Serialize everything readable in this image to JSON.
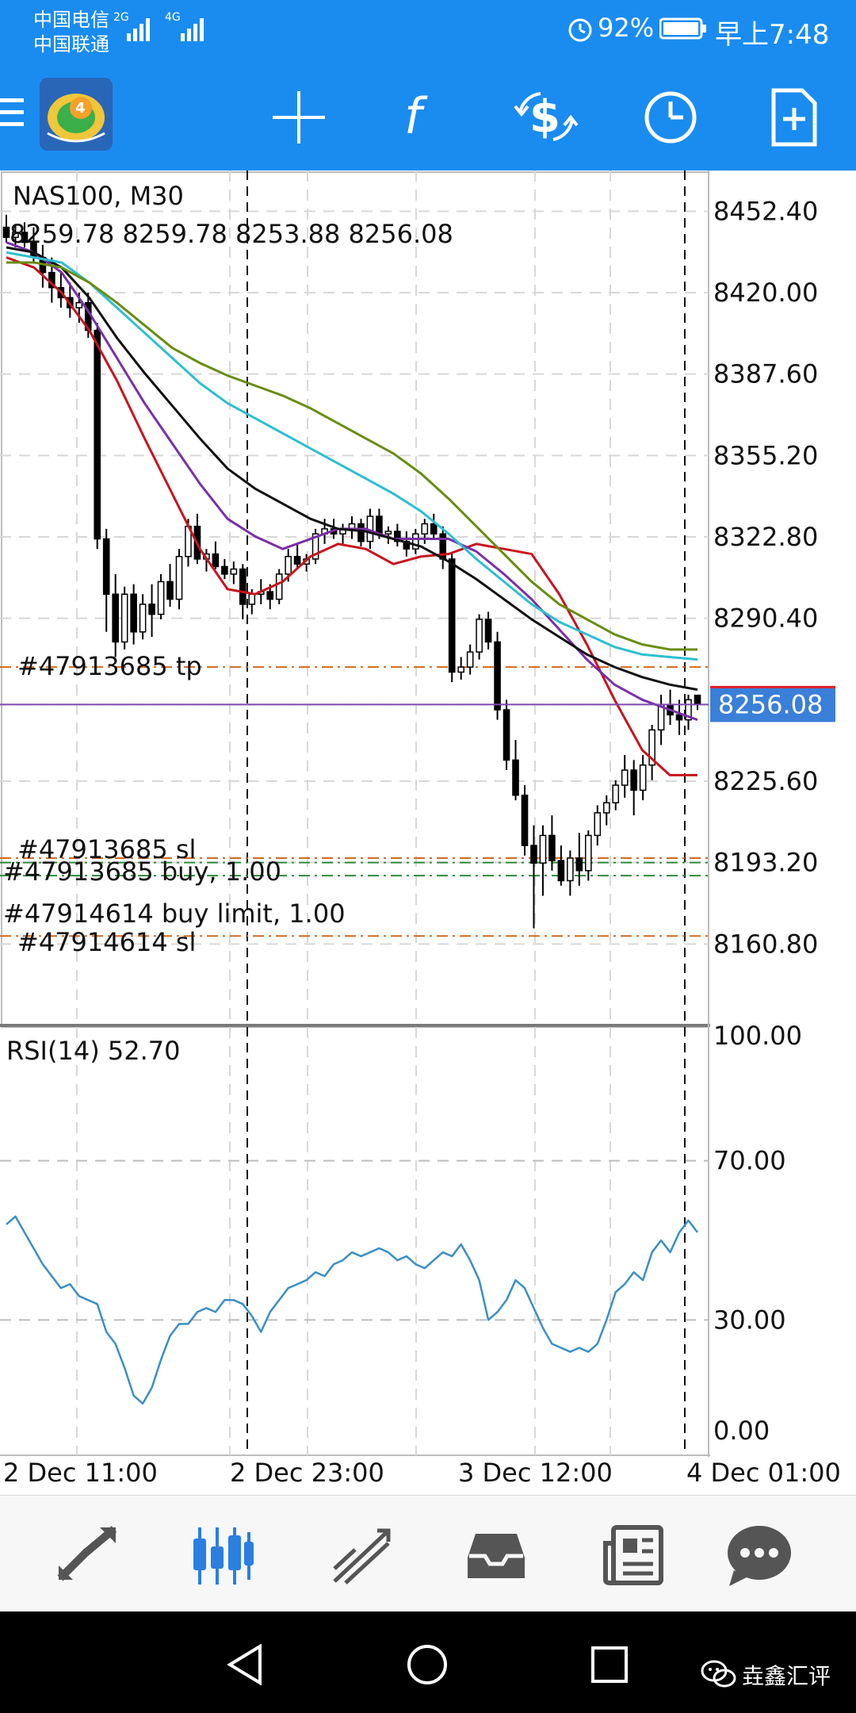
{
  "status": {
    "carrier1": "中国电信",
    "carrier2": "中国联通",
    "net1": "2G",
    "net2": "4G",
    "battery": "92%",
    "time": "早上7:48"
  },
  "toolbar": {
    "menu_icon": "menu-icon",
    "app_icon": "metatrader4-logo",
    "icons": [
      "crosshair-icon",
      "indicators-icon",
      "trade-icon",
      "timeframe-icon",
      "new-order-icon"
    ]
  },
  "chart": {
    "symbol_label": "NAS100, M30",
    "ohlc_label": "8259.78 8259.78 8253.88 8256.08",
    "price_ticks": [
      "8452.40",
      "8420.00",
      "8387.60",
      "8355.20",
      "8322.80",
      "8290.40",
      "8225.60",
      "8193.20",
      "8160.80"
    ],
    "current_price": "8256.08",
    "order_labels": {
      "tp": "#47913685 tp",
      "sl": "#47913685 sl",
      "buy": "#47913685 buy, 1.00",
      "limit": "#47914614 buy limit, 1.00",
      "sl2": "#47914614 sl"
    },
    "rsi_label": "RSI(14) 52.70",
    "rsi_ticks": [
      "100.00",
      "70.00",
      "30.00",
      "0.00"
    ],
    "time_ticks": [
      "2 Dec 11:00",
      "2 Dec 23:00",
      "3 Dec 12:00",
      "4 Dec 01:00"
    ],
    "colors": {
      "bull": "#ffffff",
      "bear": "#000000",
      "ma_red": "#c8141e",
      "ma_purple": "#7a2fa8",
      "ma_black": "#111111",
      "ma_cyan": "#2cbfd0",
      "ma_green": "#6a8c12",
      "rsi": "#3a8fc4",
      "price_box": "#3a7fd8",
      "tp_line": "#d2691e",
      "sl_line": "#d2691e",
      "buy_line": "#2e8b3a"
    }
  },
  "chart_data": {
    "type": "candlestick",
    "title": "NAS100, M30",
    "ylim": [
      8128.4,
      8468.6
    ],
    "y_ticks": [
      8452.4,
      8420.0,
      8387.6,
      8355.2,
      8322.8,
      8290.4,
      8256.08,
      8225.6,
      8193.2,
      8160.8
    ],
    "x_ticks": [
      "2 Dec 11:00",
      "2 Dec 23:00",
      "3 Dec 12:00",
      "4 Dec 01:00"
    ],
    "candles": [
      {
        "o": 8446,
        "h": 8451,
        "l": 8440,
        "c": 8442
      },
      {
        "o": 8442,
        "h": 8447,
        "l": 8438,
        "c": 8444
      },
      {
        "o": 8444,
        "h": 8448,
        "l": 8438,
        "c": 8440
      },
      {
        "o": 8440,
        "h": 8446,
        "l": 8432,
        "c": 8434
      },
      {
        "o": 8434,
        "h": 8439,
        "l": 8422,
        "c": 8428
      },
      {
        "o": 8428,
        "h": 8434,
        "l": 8416,
        "c": 8422
      },
      {
        "o": 8422,
        "h": 8428,
        "l": 8414,
        "c": 8418
      },
      {
        "o": 8418,
        "h": 8424,
        "l": 8410,
        "c": 8414
      },
      {
        "o": 8414,
        "h": 8420,
        "l": 8408,
        "c": 8416
      },
      {
        "o": 8416,
        "h": 8420,
        "l": 8402,
        "c": 8405
      },
      {
        "o": 8405,
        "h": 8408,
        "l": 8318,
        "c": 8322
      },
      {
        "o": 8322,
        "h": 8326,
        "l": 8285,
        "c": 8300
      },
      {
        "o": 8300,
        "h": 8308,
        "l": 8275,
        "c": 8281
      },
      {
        "o": 8281,
        "h": 8303,
        "l": 8278,
        "c": 8300
      },
      {
        "o": 8300,
        "h": 8304,
        "l": 8280,
        "c": 8285
      },
      {
        "o": 8285,
        "h": 8300,
        "l": 8282,
        "c": 8296
      },
      {
        "o": 8296,
        "h": 8304,
        "l": 8283,
        "c": 8292
      },
      {
        "o": 8292,
        "h": 8308,
        "l": 8290,
        "c": 8305
      },
      {
        "o": 8305,
        "h": 8312,
        "l": 8295,
        "c": 8298
      },
      {
        "o": 8298,
        "h": 8318,
        "l": 8294,
        "c": 8315
      },
      {
        "o": 8315,
        "h": 8330,
        "l": 8311,
        "c": 8327
      },
      {
        "o": 8327,
        "h": 8332,
        "l": 8312,
        "c": 8314
      },
      {
        "o": 8314,
        "h": 8318,
        "l": 8309,
        "c": 8316
      },
      {
        "o": 8316,
        "h": 8321,
        "l": 8310,
        "c": 8311
      },
      {
        "o": 8311,
        "h": 8314,
        "l": 8306,
        "c": 8308
      },
      {
        "o": 8308,
        "h": 8313,
        "l": 8304,
        "c": 8310
      },
      {
        "o": 8310,
        "h": 8312,
        "l": 8290,
        "c": 8296
      },
      {
        "o": 8296,
        "h": 8302,
        "l": 8292,
        "c": 8300
      },
      {
        "o": 8300,
        "h": 8306,
        "l": 8296,
        "c": 8301
      },
      {
        "o": 8301,
        "h": 8304,
        "l": 8294,
        "c": 8298
      },
      {
        "o": 8298,
        "h": 8310,
        "l": 8296,
        "c": 8308
      },
      {
        "o": 8308,
        "h": 8318,
        "l": 8305,
        "c": 8315
      },
      {
        "o": 8315,
        "h": 8320,
        "l": 8310,
        "c": 8312
      },
      {
        "o": 8312,
        "h": 8316,
        "l": 8309,
        "c": 8314
      },
      {
        "o": 8314,
        "h": 8326,
        "l": 8312,
        "c": 8324
      },
      {
        "o": 8324,
        "h": 8330,
        "l": 8320,
        "c": 8326
      },
      {
        "o": 8326,
        "h": 8330,
        "l": 8322,
        "c": 8324
      },
      {
        "o": 8324,
        "h": 8328,
        "l": 8320,
        "c": 8326
      },
      {
        "o": 8326,
        "h": 8331,
        "l": 8322,
        "c": 8328
      },
      {
        "o": 8328,
        "h": 8330,
        "l": 8319,
        "c": 8321
      },
      {
        "o": 8321,
        "h": 8334,
        "l": 8318,
        "c": 8331
      },
      {
        "o": 8331,
        "h": 8334,
        "l": 8322,
        "c": 8324
      },
      {
        "o": 8324,
        "h": 8327,
        "l": 8320,
        "c": 8325
      },
      {
        "o": 8325,
        "h": 8328,
        "l": 8319,
        "c": 8321
      },
      {
        "o": 8321,
        "h": 8325,
        "l": 8315,
        "c": 8318
      },
      {
        "o": 8318,
        "h": 8326,
        "l": 8316,
        "c": 8324
      },
      {
        "o": 8324,
        "h": 8330,
        "l": 8320,
        "c": 8328
      },
      {
        "o": 8328,
        "h": 8332,
        "l": 8322,
        "c": 8324
      },
      {
        "o": 8324,
        "h": 8327,
        "l": 8310,
        "c": 8314
      },
      {
        "o": 8314,
        "h": 8316,
        "l": 8265,
        "c": 8269
      },
      {
        "o": 8269,
        "h": 8275,
        "l": 8266,
        "c": 8271
      },
      {
        "o": 8271,
        "h": 8280,
        "l": 8268,
        "c": 8277
      },
      {
        "o": 8277,
        "h": 8292,
        "l": 8274,
        "c": 8290
      },
      {
        "o": 8290,
        "h": 8293,
        "l": 8278,
        "c": 8281
      },
      {
        "o": 8281,
        "h": 8285,
        "l": 8250,
        "c": 8254
      },
      {
        "o": 8254,
        "h": 8258,
        "l": 8230,
        "c": 8234
      },
      {
        "o": 8234,
        "h": 8242,
        "l": 8218,
        "c": 8220
      },
      {
        "o": 8220,
        "h": 8224,
        "l": 8196,
        "c": 8200
      },
      {
        "o": 8200,
        "h": 8208,
        "l": 8167,
        "c": 8193
      },
      {
        "o": 8193,
        "h": 8208,
        "l": 8180,
        "c": 8204
      },
      {
        "o": 8204,
        "h": 8212,
        "l": 8190,
        "c": 8194
      },
      {
        "o": 8194,
        "h": 8200,
        "l": 8184,
        "c": 8186
      },
      {
        "o": 8186,
        "h": 8198,
        "l": 8180,
        "c": 8195
      },
      {
        "o": 8195,
        "h": 8205,
        "l": 8184,
        "c": 8190
      },
      {
        "o": 8190,
        "h": 8206,
        "l": 8186,
        "c": 8204
      },
      {
        "o": 8204,
        "h": 8216,
        "l": 8200,
        "c": 8213
      },
      {
        "o": 8213,
        "h": 8220,
        "l": 8208,
        "c": 8217
      },
      {
        "o": 8217,
        "h": 8226,
        "l": 8214,
        "c": 8224
      },
      {
        "o": 8224,
        "h": 8236,
        "l": 8219,
        "c": 8230
      },
      {
        "o": 8230,
        "h": 8234,
        "l": 8212,
        "c": 8222
      },
      {
        "o": 8222,
        "h": 8236,
        "l": 8218,
        "c": 8232
      },
      {
        "o": 8232,
        "h": 8248,
        "l": 8226,
        "c": 8246
      },
      {
        "o": 8246,
        "h": 8260,
        "l": 8240,
        "c": 8256
      },
      {
        "o": 8256,
        "h": 8262,
        "l": 8248,
        "c": 8252
      },
      {
        "o": 8252,
        "h": 8258,
        "l": 8244,
        "c": 8250
      },
      {
        "o": 8250,
        "h": 8260,
        "l": 8246,
        "c": 8258
      },
      {
        "o": 8259.78,
        "h": 8259.78,
        "l": 8253.88,
        "c": 8256.08
      }
    ],
    "series": [
      {
        "name": "MA red",
        "values": [
          8434,
          8430,
          8420,
          8405,
          8385,
          8362,
          8340,
          8318,
          8302,
          8300,
          8305,
          8315,
          8320,
          8318,
          8312,
          8315,
          8316,
          8320,
          8318,
          8316,
          8300,
          8280,
          8258,
          8238,
          8228,
          8228
        ]
      },
      {
        "name": "MA purple",
        "values": [
          8440,
          8436,
          8428,
          8412,
          8394,
          8376,
          8360,
          8344,
          8330,
          8323,
          8318,
          8322,
          8326,
          8326,
          8322,
          8322,
          8322,
          8317,
          8308,
          8298,
          8286,
          8274,
          8264,
          8258,
          8254,
          8250
        ]
      },
      {
        "name": "MA black",
        "values": [
          8438,
          8436,
          8430,
          8418,
          8402,
          8388,
          8375,
          8362,
          8350,
          8342,
          8336,
          8330,
          8326,
          8325,
          8322,
          8319,
          8313,
          8306,
          8298,
          8290,
          8283,
          8276,
          8271,
          8267,
          8264,
          8262
        ]
      },
      {
        "name": "MA cyan",
        "values": [
          8436,
          8434,
          8432,
          8424,
          8414,
          8404,
          8394,
          8384,
          8376,
          8370,
          8364,
          8358,
          8352,
          8346,
          8340,
          8333,
          8324,
          8314,
          8305,
          8296,
          8289,
          8284,
          8279,
          8276,
          8275,
          8274
        ]
      },
      {
        "name": "MA green",
        "values": [
          8432,
          8432,
          8430,
          8424,
          8416,
          8407,
          8398,
          8392,
          8387,
          8383,
          8379,
          8374,
          8368,
          8362,
          8356,
          8348,
          8338,
          8327,
          8316,
          8305,
          8296,
          8290,
          8284,
          8280,
          8278,
          8278
        ]
      }
    ],
    "horizontal_lines": [
      {
        "label": "#47913685 tp",
        "value": 8271
      },
      {
        "label": "#47913685 buy, 1.00",
        "value": 8193.2
      },
      {
        "label": "#47913685 sl",
        "value": 8195
      },
      {
        "label": "#47914614 buy limit, 1.00",
        "value": 8188
      },
      {
        "label": "#47914614 sl",
        "value": 8164
      }
    ],
    "rsi": {
      "period": 14,
      "last": 52.7,
      "ylim": [
        0,
        100
      ],
      "levels": [
        70,
        30
      ],
      "values": [
        54,
        56,
        52,
        48,
        44,
        41,
        38,
        39,
        36,
        35,
        34,
        27,
        24,
        18,
        11,
        9,
        13,
        20,
        26,
        29,
        29,
        32,
        33,
        32,
        35,
        35,
        34,
        31,
        27,
        32,
        35,
        38,
        39,
        40,
        42,
        41,
        44,
        45,
        47,
        46,
        47,
        48,
        47,
        45,
        46,
        44,
        43,
        45,
        47,
        46,
        49,
        45,
        40,
        30,
        32,
        35,
        40,
        38,
        33,
        28,
        24,
        23,
        22,
        23,
        22,
        24,
        30,
        37,
        39,
        42,
        40,
        47,
        50,
        47,
        52,
        55,
        52
      ]
    }
  },
  "bottom_nav": {
    "items": [
      "quotes-icon",
      "chart-icon",
      "trade-icon",
      "history-icon",
      "news-icon",
      "messages-icon"
    ]
  },
  "system_nav": {
    "watermark": "垚鑫汇评"
  }
}
